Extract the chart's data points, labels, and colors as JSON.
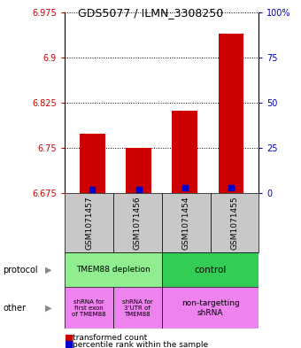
{
  "title": "GDS5077 / ILMN_3308250",
  "samples": [
    "GSM1071457",
    "GSM1071456",
    "GSM1071454",
    "GSM1071455"
  ],
  "red_values": [
    6.773,
    6.75,
    6.812,
    6.94
  ],
  "blue_values": [
    6.681,
    6.681,
    6.684,
    6.684
  ],
  "y_min": 6.675,
  "y_max": 6.975,
  "y_ticks_left": [
    6.675,
    6.75,
    6.825,
    6.9,
    6.975
  ],
  "y_ticks_right": [
    0,
    25,
    50,
    75,
    100
  ],
  "bar_color": "#CC0000",
  "blue_color": "#0000CC",
  "bg_color": "#FFFFFF",
  "label_color_left": "#CC0000",
  "label_color_right": "#0000BB",
  "protocol_green_light": "#90EE90",
  "protocol_green_dark": "#33CC55",
  "other_pink": "#EE82EE",
  "sample_bg": "#C8C8C8"
}
